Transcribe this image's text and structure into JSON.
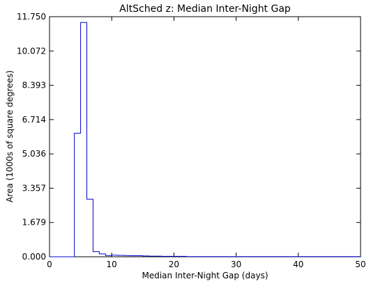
{
  "chart_data": {
    "type": "histogram",
    "title": "AltSched  z: Median Inter-Night Gap",
    "xlabel": "Median Inter-Night Gap (days)",
    "ylabel": "Area (1000s of square degrees)",
    "xlim": [
      0,
      50
    ],
    "ylim": [
      0,
      11.75
    ],
    "xticks": [
      0,
      10,
      20,
      30,
      40,
      50
    ],
    "xtick_labels": [
      "0",
      "10",
      "20",
      "30",
      "40",
      "50"
    ],
    "yticks": [
      0,
      1.679,
      3.357,
      5.036,
      6.714,
      8.393,
      10.072,
      11.75
    ],
    "ytick_labels": [
      "0.000",
      "1.679",
      "3.357",
      "5.036",
      "6.714",
      "8.393",
      "10.072",
      "11.750"
    ],
    "grid": false,
    "line_color": "#0000cc",
    "bin_width": 1,
    "bin_edges_start": 0,
    "values": [
      0,
      0,
      0,
      0,
      6.05,
      11.47,
      2.82,
      0.25,
      0.14,
      0.06,
      0.08,
      0.07,
      0.06,
      0.05,
      0.05,
      0.04,
      0.03,
      0.03,
      0.02,
      0.02,
      0.02,
      0.02,
      0.01,
      0.01,
      0.01,
      0.01,
      0.01,
      0.01,
      0.01,
      0.01,
      0.01,
      0.01,
      0.01,
      0.01,
      0.01,
      0.01,
      0.01,
      0.01,
      0.01,
      0.01,
      0.01,
      0.01,
      0.01,
      0.01,
      0.01,
      0.01,
      0.01,
      0.01,
      0.01,
      0.01
    ]
  }
}
